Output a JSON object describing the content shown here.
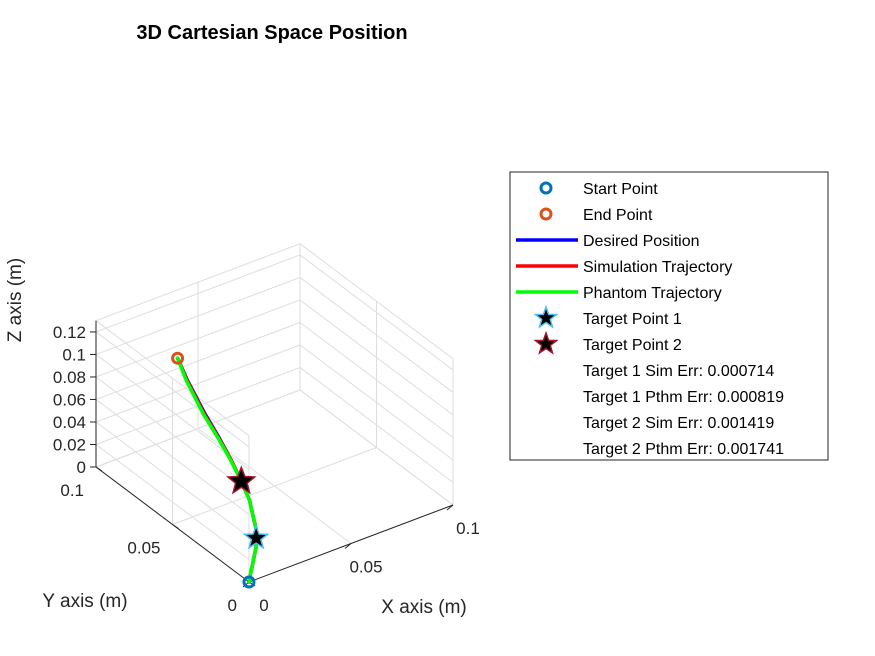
{
  "chart_data": {
    "type": "line",
    "projection": "3d",
    "title": "3D Cartesian Space Position",
    "xlabel": "X axis (m)",
    "ylabel": "Y axis (m)",
    "zlabel": "Z axis (m)",
    "xlim": [
      0,
      0.1
    ],
    "ylim": [
      0,
      0.1
    ],
    "zlim": [
      0,
      0.13
    ],
    "xticks": [
      "0",
      "0.05",
      "0.1"
    ],
    "yticks": [
      "0",
      "0.05",
      "0.1"
    ],
    "zticks": [
      "0",
      "0.02",
      "0.04",
      "0.06",
      "0.08",
      "0.1",
      "0.12"
    ],
    "grid": true,
    "legend_position": "right",
    "colors": {
      "start": "#0072BD",
      "end": "#D95319",
      "desired": "#0000FF",
      "simulation": "#FF0000",
      "phantom": "#00FF00",
      "target1_fill": "#000000",
      "target1_edge": "#4DBEEE",
      "target2_fill": "#000000",
      "target2_edge": "#A2142F"
    },
    "start_point": {
      "name": "Start Point",
      "x": 0.0,
      "y": 0.0,
      "z": 0.0
    },
    "end_point": {
      "name": "End Point",
      "x": 0.025,
      "y": 0.08,
      "z": 0.1
    },
    "series": [
      {
        "name": "Desired Position",
        "x": [
          0,
          0.003,
          0.007,
          0.011,
          0.014,
          0.017,
          0.02,
          0.023,
          0.0265,
          0.0285,
          0.0295,
          0.0295,
          0.0285,
          0.026,
          0.025
        ],
        "y": [
          0,
          0.003,
          0.007,
          0.011,
          0.014,
          0.018,
          0.022,
          0.028,
          0.035,
          0.043,
          0.051,
          0.059,
          0.067,
          0.075,
          0.08
        ],
        "z": [
          0,
          0.002,
          0.004,
          0.006,
          0.007,
          0.009,
          0.011,
          0.014,
          0.019,
          0.026,
          0.036,
          0.048,
          0.062,
          0.085,
          0.1
        ]
      },
      {
        "name": "Simulation Trajectory",
        "x": [
          0,
          0.003,
          0.007,
          0.011,
          0.014,
          0.017,
          0.02,
          0.023,
          0.0265,
          0.0285,
          0.0295,
          0.0293,
          0.0282,
          0.0258,
          0.025
        ],
        "y": [
          0,
          0.003,
          0.007,
          0.011,
          0.014,
          0.018,
          0.022,
          0.028,
          0.035,
          0.043,
          0.051,
          0.059,
          0.067,
          0.075,
          0.08
        ],
        "z": [
          0,
          0.002,
          0.004,
          0.006,
          0.007,
          0.009,
          0.011,
          0.014,
          0.019,
          0.026,
          0.036,
          0.048,
          0.062,
          0.085,
          0.1
        ]
      },
      {
        "name": "Phantom Trajectory",
        "x": [
          0,
          0.003,
          0.007,
          0.011,
          0.014,
          0.017,
          0.02,
          0.023,
          0.0265,
          0.0285,
          0.0293,
          0.029,
          0.0278,
          0.0255,
          0.025
        ],
        "y": [
          0,
          0.003,
          0.007,
          0.011,
          0.014,
          0.018,
          0.022,
          0.028,
          0.035,
          0.043,
          0.051,
          0.059,
          0.067,
          0.075,
          0.08
        ],
        "z": [
          0,
          0.002,
          0.004,
          0.006,
          0.007,
          0.009,
          0.011,
          0.014,
          0.019,
          0.026,
          0.036,
          0.048,
          0.062,
          0.085,
          0.1
        ]
      }
    ],
    "target_points": [
      {
        "name": "Target Point 1",
        "x": 0.017,
        "y": 0.018,
        "z": 0.009
      },
      {
        "name": "Target Point 2",
        "x": 0.0285,
        "y": 0.043,
        "z": 0.026
      }
    ],
    "legend": [
      {
        "key": "start",
        "label": "Start Point",
        "symbol": "circle"
      },
      {
        "key": "end",
        "label": "End Point",
        "symbol": "circle"
      },
      {
        "key": "desired",
        "label": "Desired Position",
        "symbol": "line"
      },
      {
        "key": "simulation",
        "label": "Simulation Trajectory",
        "symbol": "line"
      },
      {
        "key": "phantom",
        "label": "Phantom Trajectory",
        "symbol": "line"
      },
      {
        "key": "target1",
        "label": "Target Point 1",
        "symbol": "star"
      },
      {
        "key": "target2",
        "label": "Target Point 2",
        "symbol": "star"
      },
      {
        "key": "err1",
        "label": "Target 1 Sim Err: 0.000714",
        "symbol": "none"
      },
      {
        "key": "err2",
        "label": "Target 1 Pthm Err: 0.000819",
        "symbol": "none"
      },
      {
        "key": "err3",
        "label": "Target 2 Sim Err: 0.001419",
        "symbol": "none"
      },
      {
        "key": "err4",
        "label": "Target 2 Pthm Err: 0.001741",
        "symbol": "none"
      }
    ]
  }
}
